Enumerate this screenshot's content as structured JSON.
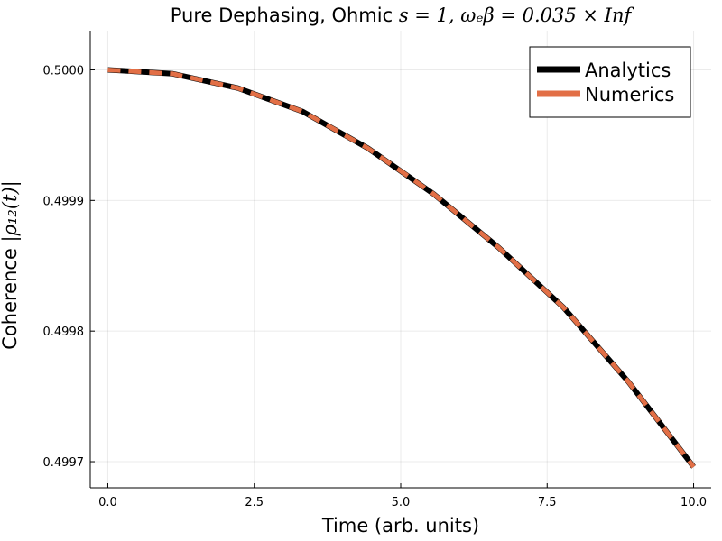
{
  "chart_data": {
    "type": "line",
    "title_prefix": "Pure Dephasing, Ohmic ",
    "title_math": "s = 1, ωₑβ = 0.035 × Inf",
    "title_full": "Pure Dephasing, Ohmic s = 1, ω_cβ = 0.035 × Inf",
    "xlabel": "Time (arb. units)",
    "ylabel_prefix": "Coherence ",
    "ylabel_math": "|ρ₁₂(t)|",
    "xlim": [
      -0.3,
      10.3
    ],
    "ylim": [
      0.49968,
      0.50003
    ],
    "x_ticks": [
      0.0,
      2.5,
      5.0,
      7.5,
      10.0
    ],
    "x_tick_labels": [
      "0.0",
      "2.5",
      "5.0",
      "7.5",
      "10.0"
    ],
    "y_ticks": [
      0.4997,
      0.4998,
      0.4999,
      0.5
    ],
    "y_tick_labels": [
      "0.4997",
      "0.4998",
      "0.4999",
      "0.5000"
    ],
    "grid": true,
    "legend_position": "top-right",
    "series": [
      {
        "name": "Analytics",
        "color": "#000000",
        "style": "solid",
        "x": [
          0.0,
          1.11,
          2.22,
          3.33,
          4.44,
          5.56,
          6.67,
          7.78,
          8.89,
          10.0
        ],
        "y": [
          0.5,
          0.499997,
          0.499986,
          0.499968,
          0.49994,
          0.499905,
          0.499864,
          0.499818,
          0.499761,
          0.499696
        ]
      },
      {
        "name": "Numerics",
        "color": "#e26f46",
        "style": "dashed",
        "x": [
          0.0,
          1.11,
          2.22,
          3.33,
          4.44,
          5.56,
          6.67,
          7.78,
          8.89,
          10.0
        ],
        "y": [
          0.5,
          0.499997,
          0.499986,
          0.499968,
          0.49994,
          0.499905,
          0.499864,
          0.499818,
          0.499761,
          0.499696
        ]
      }
    ]
  }
}
